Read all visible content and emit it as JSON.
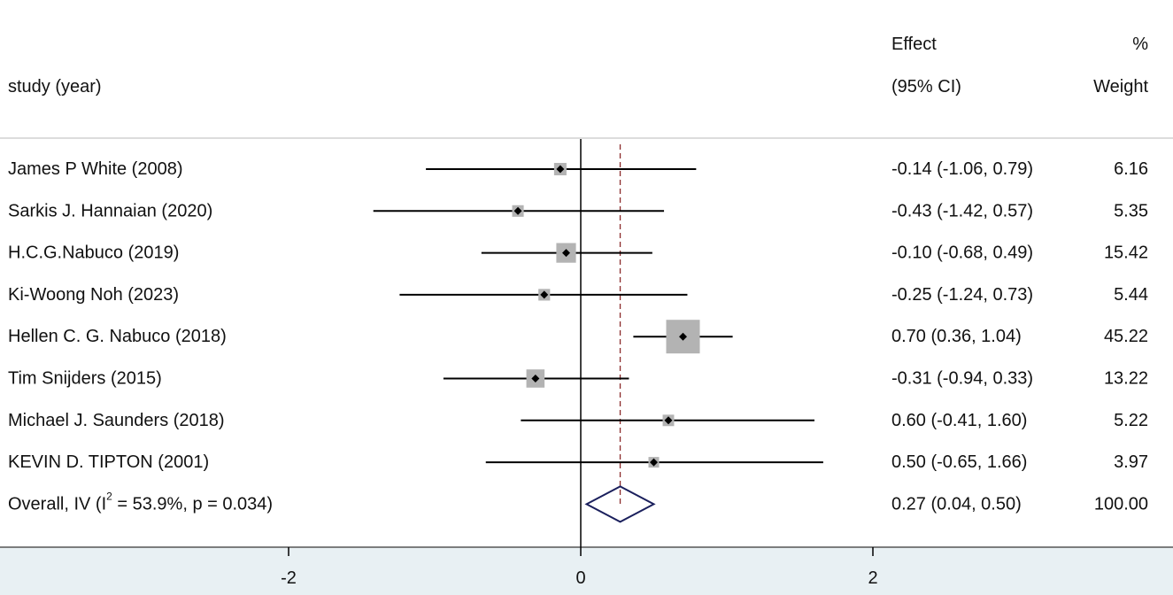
{
  "chart_data": {
    "type": "forest",
    "headers": {
      "study": "study (year)",
      "effect_line1": "Effect",
      "effect_line2": "(95% CI)",
      "weight_line1": "%",
      "weight_line2": "Weight"
    },
    "studies": [
      {
        "label": "James P White (2008)",
        "effect": -0.14,
        "ci_low": -1.06,
        "ci_high": 0.79,
        "ci_text": "-0.14 (-1.06, 0.79)",
        "weight": 6.16,
        "weight_text": "6.16"
      },
      {
        "label": "Sarkis J. Hannaian (2020)",
        "effect": -0.43,
        "ci_low": -1.42,
        "ci_high": 0.57,
        "ci_text": "-0.43 (-1.42, 0.57)",
        "weight": 5.35,
        "weight_text": "5.35"
      },
      {
        "label": "H.C.G.Nabuco (2019)",
        "effect": -0.1,
        "ci_low": -0.68,
        "ci_high": 0.49,
        "ci_text": "-0.10 (-0.68, 0.49)",
        "weight": 15.42,
        "weight_text": "15.42"
      },
      {
        "label": "Ki-Woong Noh (2023)",
        "effect": -0.25,
        "ci_low": -1.24,
        "ci_high": 0.73,
        "ci_text": "-0.25 (-1.24, 0.73)",
        "weight": 5.44,
        "weight_text": "5.44"
      },
      {
        "label": "Hellen C. G. Nabuco  (2018)",
        "effect": 0.7,
        "ci_low": 0.36,
        "ci_high": 1.04,
        "ci_text": "0.70 (0.36, 1.04)",
        "weight": 45.22,
        "weight_text": "45.22"
      },
      {
        "label": "Tim Snijders (2015)",
        "effect": -0.31,
        "ci_low": -0.94,
        "ci_high": 0.33,
        "ci_text": "-0.31 (-0.94, 0.33)",
        "weight": 13.22,
        "weight_text": "13.22"
      },
      {
        "label": "Michael J. Saunders (2018)",
        "effect": 0.6,
        "ci_low": -0.41,
        "ci_high": 1.6,
        "ci_text": "0.60 (-0.41, 1.60)",
        "weight": 5.22,
        "weight_text": "5.22"
      },
      {
        "label": "KEVIN D. TIPTON (2001)",
        "effect": 0.5,
        "ci_low": -0.65,
        "ci_high": 1.66,
        "ci_text": "0.50 (-0.65, 1.66)",
        "weight": 3.97,
        "weight_text": "3.97"
      }
    ],
    "overall": {
      "label_prefix": "Overall, IV (I",
      "label_sup": "2",
      "label_suffix": " = 53.9%, p = 0.034)",
      "effect": 0.27,
      "ci_low": 0.04,
      "ci_high": 0.5,
      "ci_text": "0.27 (0.04, 0.50)",
      "weight": 100.0,
      "weight_text": "100.00"
    },
    "x_ticks": [
      -2,
      0,
      2
    ],
    "x_tick_labels": [
      "-2",
      "0",
      "2"
    ],
    "null_line": 0,
    "colors": {
      "box": "#b3b3b3",
      "ci_line": "#000000",
      "diamond": "#1a1f5c",
      "overall_line": "#8b2b2b",
      "axis_band": "#e8f0f3"
    }
  }
}
